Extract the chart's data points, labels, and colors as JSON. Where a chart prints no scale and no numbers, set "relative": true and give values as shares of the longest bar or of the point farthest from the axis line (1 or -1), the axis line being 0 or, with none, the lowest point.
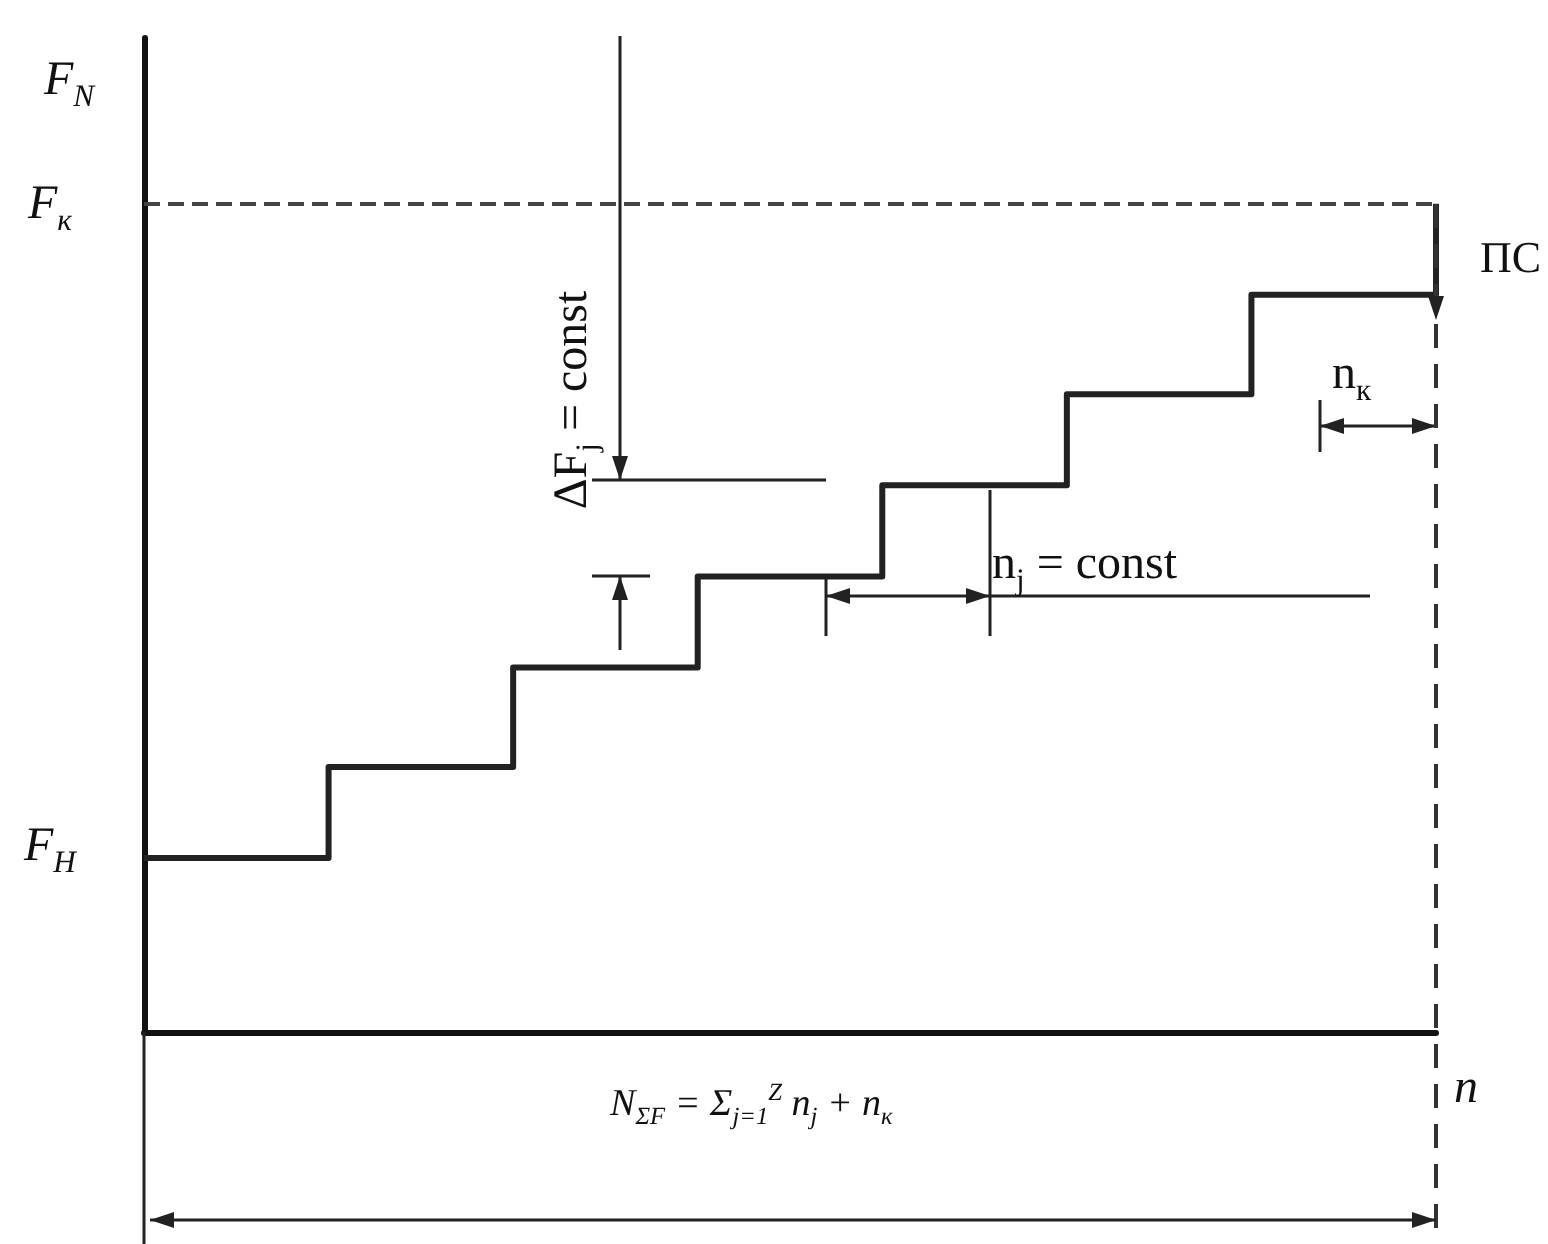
{
  "chart_data": {
    "type": "step",
    "relative": true,
    "ylabel": "F$_{N}$",
    "xlabel": "n",
    "categories": [
      null,
      null,
      null,
      null,
      null,
      null,
      null,
      null
    ],
    "series": [
      {
        "color": "#222222",
        "values": [
          0.21,
          0.32,
          0.44,
          0.55,
          0.66,
          0.77,
          0.89,
          1
        ]
      }
    ],
    "ref_lines": [
      {
        "axis": "y",
        "value": 1,
        "label": "F$_{к}$",
        "line_style": "dashed",
        "color": "#444444"
      }
    ],
    "annotations": [
      "F$_{Н}$",
      "ΔF$_{j}$ = const",
      "n$_{j}$ = const",
      "n$_{к}$",
      "ПС",
      "N$_{ΣF}$ = Σ$_{j=1}$$^{Z}$ n$_{j}$ + n$_{к}$"
    ],
    "marker": "none",
    "line_style": "solid"
  }
}
